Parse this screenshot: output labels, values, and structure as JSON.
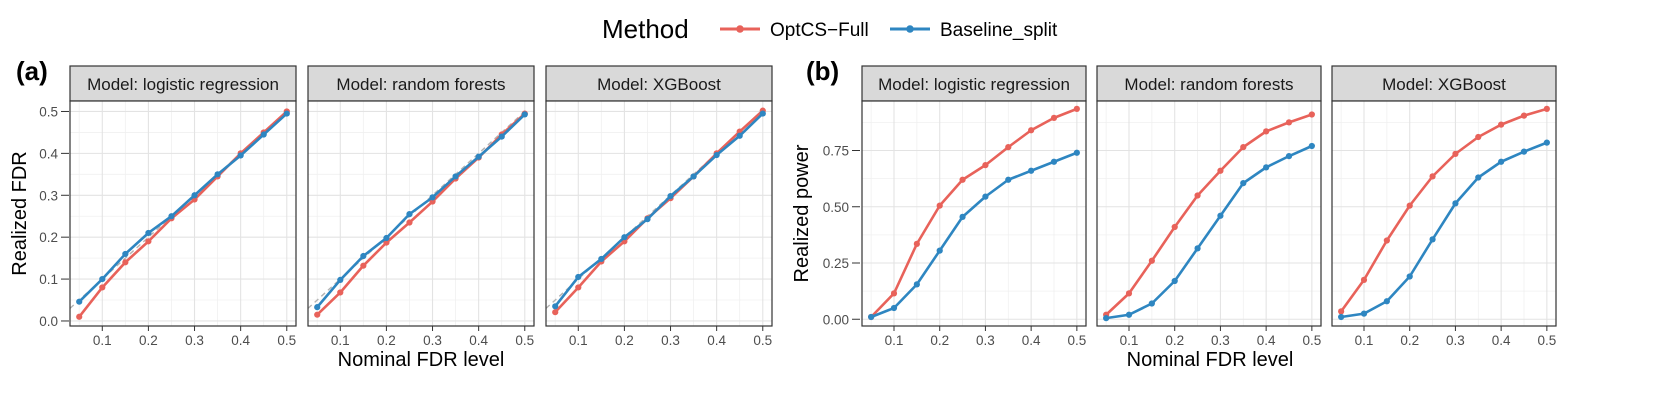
{
  "legend": {
    "title": "Method",
    "entries": [
      {
        "name": "OptCS−Full",
        "color": "#E8625A"
      },
      {
        "name": "Baseline_split",
        "color": "#2E86C1"
      }
    ]
  },
  "chart_data": [
    {
      "tag": "(a)",
      "type": "line",
      "xlabel": "Nominal FDR level",
      "ylabel": "Realized FDR",
      "xlim": [
        0.03,
        0.52
      ],
      "ylim": [
        -0.012,
        0.525
      ],
      "xticks": [
        0.1,
        0.2,
        0.3,
        0.4,
        0.5
      ],
      "xtick_labels": [
        "0.1",
        "0.2",
        "0.3",
        "0.4",
        "0.5"
      ],
      "yticks": [
        0.0,
        0.1,
        0.2,
        0.3,
        0.4,
        0.5
      ],
      "ytick_labels": [
        "0.0",
        "0.1",
        "0.2",
        "0.3",
        "0.4",
        "0.5"
      ],
      "diagonal_reference": true,
      "x": [
        0.05,
        0.1,
        0.15,
        0.2,
        0.25,
        0.3,
        0.35,
        0.4,
        0.45,
        0.5
      ],
      "facets": [
        {
          "label": "Model: logistic regression",
          "series": [
            {
              "name": "OptCS−Full",
              "values": [
                0.01,
                0.08,
                0.14,
                0.19,
                0.245,
                0.29,
                0.345,
                0.4,
                0.45,
                0.5
              ]
            },
            {
              "name": "Baseline_split",
              "values": [
                0.046,
                0.1,
                0.16,
                0.21,
                0.25,
                0.3,
                0.35,
                0.395,
                0.445,
                0.495
              ]
            }
          ]
        },
        {
          "label": "Model: random forests",
          "series": [
            {
              "name": "OptCS−Full",
              "values": [
                0.015,
                0.068,
                0.132,
                0.187,
                0.235,
                0.285,
                0.34,
                0.39,
                0.445,
                0.495
              ]
            },
            {
              "name": "Baseline_split",
              "values": [
                0.033,
                0.098,
                0.155,
                0.198,
                0.255,
                0.295,
                0.345,
                0.392,
                0.44,
                0.493
              ]
            }
          ]
        },
        {
          "label": "Model: XGBoost",
          "series": [
            {
              "name": "OptCS−Full",
              "values": [
                0.021,
                0.08,
                0.142,
                0.19,
                0.245,
                0.293,
                0.345,
                0.4,
                0.452,
                0.502
              ]
            },
            {
              "name": "Baseline_split",
              "values": [
                0.035,
                0.105,
                0.148,
                0.2,
                0.243,
                0.298,
                0.345,
                0.396,
                0.442,
                0.495
              ]
            }
          ]
        }
      ]
    },
    {
      "tag": "(b)",
      "type": "line",
      "xlabel": "Nominal FDR level",
      "ylabel": "Realized power",
      "xlim": [
        0.03,
        0.52
      ],
      "ylim": [
        -0.03,
        0.97
      ],
      "xticks": [
        0.1,
        0.2,
        0.3,
        0.4,
        0.5
      ],
      "xtick_labels": [
        "0.1",
        "0.2",
        "0.3",
        "0.4",
        "0.5"
      ],
      "yticks": [
        0.0,
        0.25,
        0.5,
        0.75
      ],
      "ytick_labels": [
        "0.00",
        "0.25",
        "0.50",
        "0.75"
      ],
      "diagonal_reference": false,
      "x": [
        0.05,
        0.1,
        0.15,
        0.2,
        0.25,
        0.3,
        0.35,
        0.4,
        0.45,
        0.5
      ],
      "facets": [
        {
          "label": "Model: logistic regression",
          "series": [
            {
              "name": "OptCS−Full",
              "values": [
                0.01,
                0.115,
                0.335,
                0.505,
                0.62,
                0.685,
                0.765,
                0.84,
                0.895,
                0.935
              ]
            },
            {
              "name": "Baseline_split",
              "values": [
                0.01,
                0.05,
                0.155,
                0.305,
                0.455,
                0.545,
                0.62,
                0.66,
                0.7,
                0.74
              ]
            }
          ]
        },
        {
          "label": "Model: random forests",
          "series": [
            {
              "name": "OptCS−Full",
              "values": [
                0.02,
                0.115,
                0.26,
                0.41,
                0.55,
                0.66,
                0.765,
                0.835,
                0.875,
                0.91
              ]
            },
            {
              "name": "Baseline_split",
              "values": [
                0.005,
                0.02,
                0.07,
                0.17,
                0.315,
                0.46,
                0.605,
                0.675,
                0.725,
                0.77
              ]
            }
          ]
        },
        {
          "label": "Model: XGBoost",
          "series": [
            {
              "name": "OptCS−Full",
              "values": [
                0.035,
                0.175,
                0.35,
                0.505,
                0.635,
                0.735,
                0.81,
                0.865,
                0.905,
                0.935
              ]
            },
            {
              "name": "Baseline_split",
              "values": [
                0.01,
                0.025,
                0.08,
                0.19,
                0.355,
                0.515,
                0.63,
                0.7,
                0.745,
                0.785
              ]
            }
          ]
        }
      ]
    }
  ]
}
